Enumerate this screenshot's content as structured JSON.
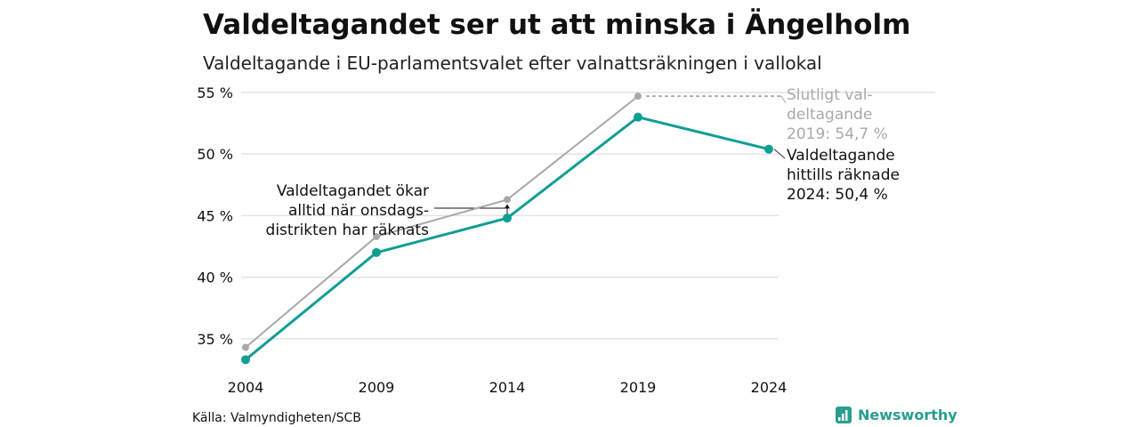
{
  "chart_data": {
    "type": "line",
    "title": "Valdeltagandet ser ut att minska i Ängelholm",
    "subtitle": "Valdeltagande i EU-parlamentsvalet efter valnattsräkningen i vallokal",
    "x": [
      "2004",
      "2009",
      "2014",
      "2019",
      "2024"
    ],
    "xlabel": "",
    "ylabel": "",
    "ylim": [
      32,
      55.5
    ],
    "y_ticks": [
      35,
      40,
      45,
      50,
      55
    ],
    "y_tick_labels": [
      "35 %",
      "40 %",
      "45 %",
      "50 %",
      "55 %"
    ],
    "grid": "horizontal",
    "series": [
      {
        "key": "final",
        "color": "#a9a9a9",
        "values": [
          34.3,
          43.3,
          46.3,
          54.7,
          null
        ]
      },
      {
        "key": "counted",
        "color": "#0f9e94",
        "values": [
          33.3,
          42.0,
          44.8,
          53.0,
          50.4
        ]
      }
    ],
    "annotations": {
      "final_label": [
        "Slutligt val-",
        "deltagande",
        "2019: 54,7 %"
      ],
      "counted_label": [
        "Valdeltagande",
        "hittills räknade",
        "2024: 50,4 %"
      ],
      "note_label": [
        "Valdeltagandet ökar",
        "alltid när onsdags-",
        "distrikten har räknats"
      ]
    }
  },
  "footer": {
    "source": "Källa: Valmyndigheten/SCB",
    "brand": "Newsworthy"
  },
  "colors": {
    "grid": "#e3e3e3",
    "brand": "#2a9d8f"
  }
}
